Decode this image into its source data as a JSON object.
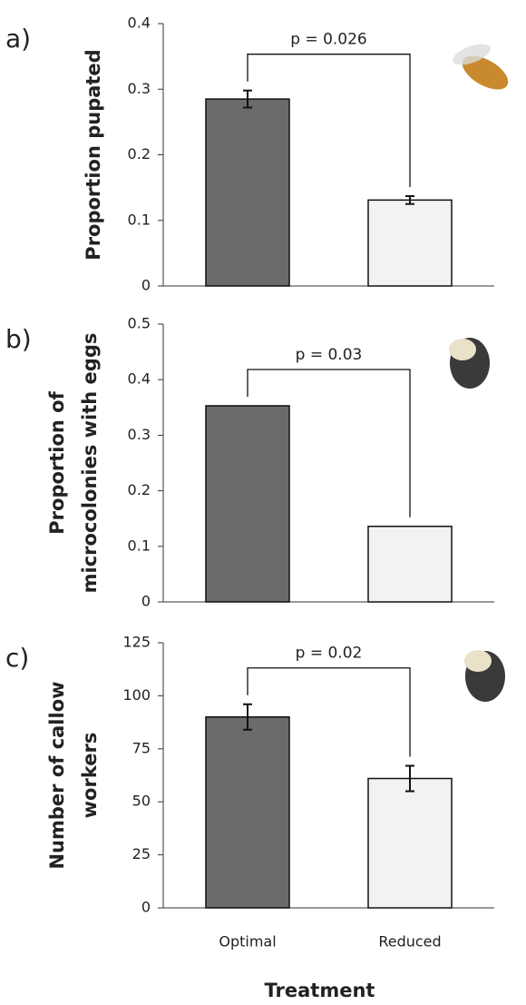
{
  "chart_data": [
    {
      "type": "bar",
      "panel": "a)",
      "ylabel": [
        "Proportion pupated"
      ],
      "values": [
        0.285,
        0.131
      ],
      "errors": [
        0.013,
        0.006
      ],
      "colors": [
        "#6b6b6b",
        "#f2f2f2"
      ],
      "ylim": [
        0,
        0.4
      ],
      "yticks": [
        0,
        0.1,
        0.2,
        0.3,
        0.4
      ],
      "annotation": "p = 0.026"
    },
    {
      "type": "bar",
      "panel": "b)",
      "ylabel": [
        "Proportion of",
        "microcolonies with eggs"
      ],
      "values": [
        0.353,
        0.136
      ],
      "colors": [
        "#6b6b6b",
        "#f2f2f2"
      ],
      "ylim": [
        0,
        0.5
      ],
      "yticks": [
        0,
        0.1,
        0.2,
        0.3,
        0.4,
        0.5
      ],
      "annotation": "p = 0.03"
    },
    {
      "type": "bar",
      "panel": "c)",
      "ylabel": [
        "Number of callow",
        "workers"
      ],
      "categories": [
        "Optimal",
        "Reduced"
      ],
      "xlabel": "Treatment",
      "values": [
        90,
        61
      ],
      "errors": [
        6,
        6
      ],
      "colors": [
        "#6b6b6b",
        "#f2f2f2"
      ],
      "ylim": [
        0,
        125
      ],
      "yticks": [
        0,
        25,
        50,
        75,
        100,
        125
      ],
      "annotation": "p = 0.02"
    }
  ]
}
